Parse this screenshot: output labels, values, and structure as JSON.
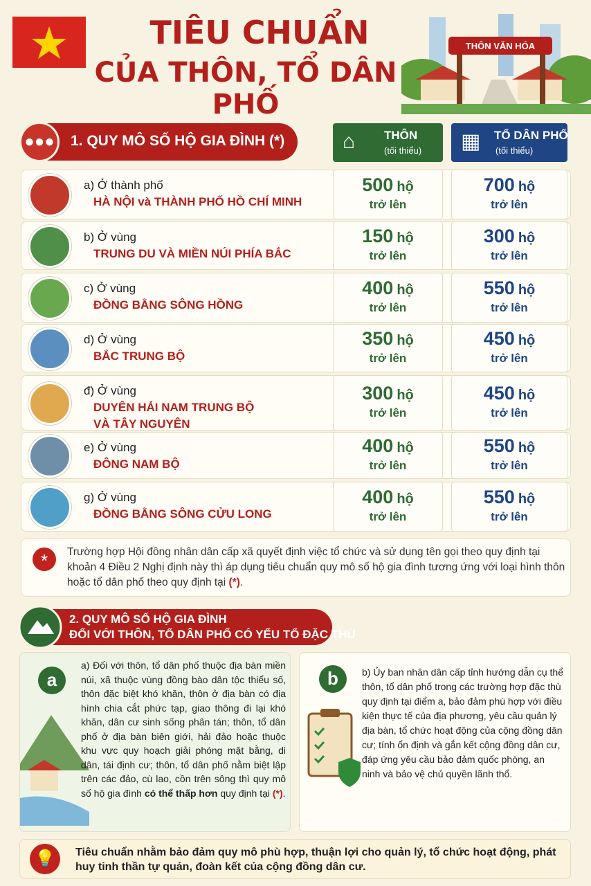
{
  "header": {
    "title_line1": "TIÊU CHUẨN",
    "title_line2": "CỦA THÔN, TỔ DÂN PHỐ",
    "sign": "THÔN VĂN HÓA"
  },
  "section1": {
    "title": "1. QUY MÔ SỐ HỘ GIA ĐÌNH (*)",
    "columns": [
      {
        "name": "THÔN",
        "note": "(tối thiểu)"
      },
      {
        "name": "TỔ DÂN PHỐ",
        "note": "(tối thiểu)"
      }
    ],
    "unit": "hộ",
    "suffix": "trở lên",
    "rows": [
      {
        "label": "a) Ở thành phố",
        "region": [
          "HÀ NỘI và THÀNH PHỐ HỒ CHÍ MINH"
        ],
        "thon": 500,
        "to_dan_pho": 700
      },
      {
        "label": "b) Ở vùng",
        "region": [
          "TRUNG DU VÀ MIỀN NÚI PHÍA BẮC"
        ],
        "thon": 150,
        "to_dan_pho": 300
      },
      {
        "label": "c) Ở vùng",
        "region": [
          "ĐỒNG BẰNG SÔNG HỒNG"
        ],
        "thon": 400,
        "to_dan_pho": 550
      },
      {
        "label": "d) Ở vùng",
        "region": [
          "BẮC TRUNG BỘ"
        ],
        "thon": 350,
        "to_dan_pho": 450
      },
      {
        "label": "đ) Ở vùng",
        "region": [
          "DUYÊN HẢI NAM TRUNG BỘ",
          "VÀ TÂY NGUYÊN"
        ],
        "thon": 300,
        "to_dan_pho": 450
      },
      {
        "label": "e) Ở vùng",
        "region": [
          "ĐÔNG NAM BỘ"
        ],
        "thon": 400,
        "to_dan_pho": 550
      },
      {
        "label": "g) Ở vùng",
        "region": [
          "ĐỒNG BẰNG SÔNG CỬU LONG"
        ],
        "thon": 400,
        "to_dan_pho": 550
      }
    ],
    "note": [
      "Trường hợp Hội đồng nhân dân cấp xã quyết định việc tổ chức và sử dụng tên gọi theo quy định tại khoản 4 Điều 2 Nghị định này thì áp dụng tiêu chuẩn quy mô số hộ gia đình tương ứng với loại hình thôn hoặc tổ dân phố theo quy định tại ",
      "(*)",
      "."
    ]
  },
  "section2": {
    "title_line1": "2. QUY MÔ SỐ HỘ GIA ĐÌNH",
    "title_line2": "ĐỐI VỚI THÔN, TỔ DÂN PHỐ CÓ YẾU TỐ ĐẶC THÙ",
    "box_a": {
      "badge": "a",
      "text": [
        "a) Đối với thôn, tổ dân phố thuộc địa bàn miền núi, xã thuộc vùng đồng bào dân tộc thiểu số, thôn đặc biệt khó khăn, thôn ở địa bàn có địa hình chia cắt phức tạp, giao thông đi lại khó khăn, dân cư sinh sống phân tán; thôn, tổ dân phố ở địa bàn biên giới, hải đảo hoặc thuộc khu vực quy hoạch giải phóng mặt bằng, di dân, tái định cư; thôn, tổ dân phố nằm biệt lập trên các đảo, cù lao, cồn trên sông thì quy mô số hộ gia đình ",
        "có thể thấp hơn",
        " quy định tại ",
        "(*)",
        "."
      ]
    },
    "box_b": {
      "badge": "b",
      "text": "b) Ủy ban nhân dân cấp tỉnh hướng dẫn cụ thể thôn, tổ dân phố trong các trường hợp đặc thù quy định tại điểm a, bảo đảm phù hợp với điều kiện thực tế của địa phương, yêu cầu quản lý địa bàn, tổ chức hoạt động của cộng đồng dân cư; tính ổn định và gắn kết cộng đồng dân cư, đáp ứng yêu cầu bảo đảm quốc phòng, an ninh và bảo vệ chủ quyền lãnh thổ."
    }
  },
  "footer": {
    "text": "Tiêu chuẩn nhằm bảo đảm quy mô phù hợp, thuận lợi cho quản lý, tổ chức hoạt động, phát huy tinh thần tự quản, đoàn kết của cộng đồng dân cư."
  }
}
